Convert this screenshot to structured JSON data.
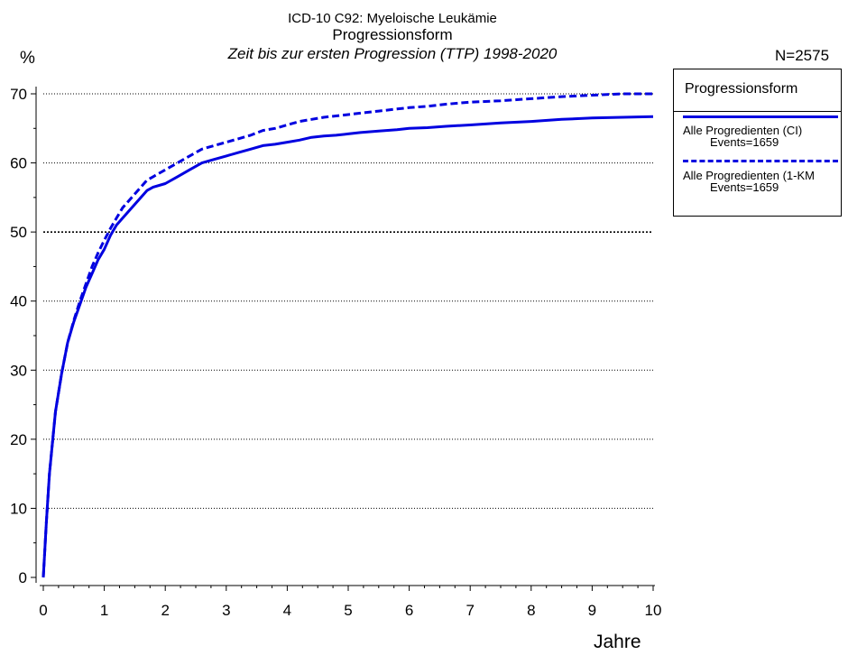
{
  "chart_data": {
    "type": "line",
    "title": "ICD-10 C92: Myeloische Leukämie",
    "subtitle": "Progressionsform",
    "subtitle2": "Zeit bis zur ersten Progression (TTP) 1998-2020",
    "n_label": "N=2575",
    "ylabel": "%",
    "xlabel": "Jahre",
    "xlim": [
      0,
      10
    ],
    "ylim": [
      0,
      70
    ],
    "xticks": [
      0,
      1,
      2,
      3,
      4,
      5,
      6,
      7,
      8,
      9,
      10
    ],
    "yticks": [
      0,
      10,
      20,
      30,
      40,
      50,
      60,
      70
    ],
    "grid": "horizontal dotted",
    "legend": {
      "title": "Progressionsform",
      "placement": "right",
      "entries": [
        {
          "label": "Alle Progredienten (CI)",
          "events": "Events=1659"
        },
        {
          "label": "Alle Progredienten (1-KM",
          "events": "Events=1659"
        }
      ]
    },
    "series": [
      {
        "name": "Alle Progredienten (CI)",
        "style": "solid",
        "color": "#0000e0",
        "x": [
          0,
          0.05,
          0.1,
          0.2,
          0.3,
          0.4,
          0.5,
          0.6,
          0.7,
          0.8,
          0.9,
          1.0,
          1.1,
          1.2,
          1.3,
          1.5,
          1.7,
          1.8,
          2.0,
          2.2,
          2.4,
          2.6,
          2.8,
          3.0,
          3.2,
          3.4,
          3.6,
          3.8,
          4.0,
          4.2,
          4.4,
          4.6,
          4.8,
          5.0,
          5.2,
          5.5,
          5.8,
          6.0,
          6.3,
          6.6,
          7.0,
          7.5,
          8.0,
          8.5,
          9.0,
          9.5,
          10.0
        ],
        "y": [
          0,
          8,
          15,
          24,
          29.5,
          34,
          37,
          39.5,
          42,
          44,
          46,
          47.5,
          49.5,
          51,
          52,
          54,
          56,
          56.5,
          57,
          58,
          59,
          60,
          60.5,
          61,
          61.5,
          62,
          62.5,
          62.7,
          63,
          63.3,
          63.7,
          63.9,
          64,
          64.2,
          64.4,
          64.6,
          64.8,
          65,
          65.1,
          65.3,
          65.5,
          65.8,
          66,
          66.3,
          66.5,
          66.6,
          66.7
        ]
      },
      {
        "name": "Alle Progredienten (1-KM",
        "style": "dashed",
        "color": "#0000e0",
        "x": [
          0,
          0.05,
          0.1,
          0.2,
          0.3,
          0.4,
          0.5,
          0.6,
          0.7,
          0.8,
          0.9,
          1.0,
          1.1,
          1.2,
          1.3,
          1.5,
          1.7,
          1.8,
          2.0,
          2.2,
          2.4,
          2.6,
          2.8,
          3.0,
          3.2,
          3.4,
          3.6,
          3.8,
          4.0,
          4.2,
          4.4,
          4.6,
          4.8,
          5.0,
          5.2,
          5.5,
          5.8,
          6.0,
          6.3,
          6.6,
          7.0,
          7.5,
          8.0,
          8.5,
          9.0,
          9.5,
          10.0
        ],
        "y": [
          0,
          8,
          15,
          24,
          29.5,
          34,
          37.2,
          40,
          42.5,
          45,
          47,
          48.8,
          50.5,
          52,
          53.5,
          55.5,
          57.5,
          58,
          59,
          60,
          61,
          62,
          62.5,
          63,
          63.5,
          64,
          64.7,
          65,
          65.5,
          66,
          66.3,
          66.6,
          66.8,
          67,
          67.2,
          67.5,
          67.8,
          68,
          68.2,
          68.5,
          68.8,
          69,
          69.3,
          69.6,
          69.8,
          70,
          70
        ]
      }
    ]
  }
}
